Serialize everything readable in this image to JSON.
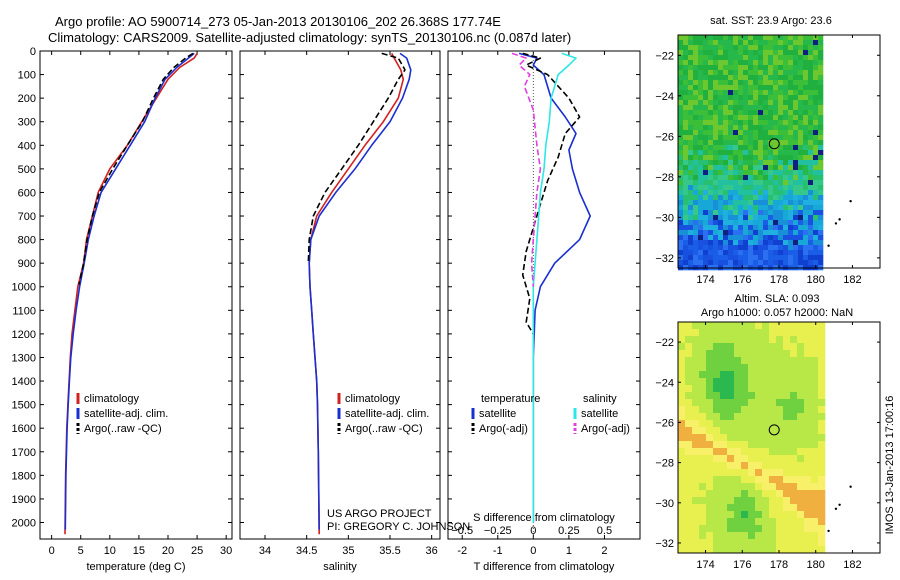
{
  "header": {
    "line1": "Argo profile: AO 5900714_273 05-Jan-2013 20130106_202 26.368S 177.74E",
    "line2": "Climatology: CARS2009. Satellite-adjusted climatology: synTS_20130106.nc (0.087d later)"
  },
  "credits": {
    "project": "US ARGO PROJECT",
    "pi": "PI: GREGORY C. JOHNSON"
  },
  "stamp": "IMOS 13-Jan-2013 17:00:16",
  "colors": {
    "climatology": "#d32020",
    "satellite": "#1a2fd0",
    "argo": "#000000",
    "sal_satellite": "#2ee6e6",
    "sal_argo": "#e040e0"
  },
  "chart_data": [
    {
      "type": "line",
      "id": "temperature",
      "xlabel": "temperature (deg C)",
      "ylabel": "",
      "xlim": [
        -2,
        31
      ],
      "ylim": [
        2070,
        0
      ],
      "xticks": [
        0,
        5,
        10,
        15,
        20,
        25,
        30
      ],
      "yticks": [
        0,
        100,
        200,
        300,
        400,
        500,
        600,
        700,
        800,
        900,
        1000,
        1100,
        1200,
        1300,
        1400,
        1500,
        1600,
        1700,
        1800,
        1900,
        2000
      ],
      "legend": {
        "placement": "lower-middle",
        "entries": [
          "climatology",
          "satellite-adj. clim.",
          "Argo(..raw -QC)"
        ]
      },
      "series": [
        {
          "name": "climatology",
          "color": "#d32020",
          "x": [
            25,
            24.5,
            22,
            20,
            18,
            15.5,
            13,
            10,
            8,
            7,
            6,
            5.5,
            4.5,
            4,
            3.5,
            3.2,
            3,
            2.8,
            2.6,
            2.5,
            2.4,
            2.3
          ],
          "y": [
            10,
            30,
            70,
            120,
            200,
            300,
            400,
            500,
            600,
            700,
            800,
            900,
            1000,
            1100,
            1200,
            1300,
            1400,
            1500,
            1600,
            1700,
            1800,
            2050
          ]
        },
        {
          "name": "satellite-adj. clim.",
          "color": "#1a2fd0",
          "x": [
            24.5,
            23.5,
            21.5,
            19.5,
            17.8,
            16,
            13.5,
            11,
            8.5,
            7.3,
            6.3,
            5.6,
            4.8,
            4.2,
            3.7,
            3.3,
            3.05,
            2.85,
            2.65,
            2.55,
            2.45,
            2.35
          ],
          "y": [
            10,
            30,
            70,
            120,
            200,
            300,
            400,
            500,
            600,
            700,
            800,
            900,
            1000,
            1100,
            1200,
            1300,
            1400,
            1500,
            1600,
            1700,
            1800,
            2030
          ]
        },
        {
          "name": "Argo(..raw -QC)",
          "color": "#000000",
          "dashed": true,
          "x": [
            24.3,
            23,
            21,
            19.2,
            17.5,
            15.6,
            13,
            10.5,
            8.2,
            7,
            6.1,
            5.5,
            4.7
          ],
          "y": [
            10,
            30,
            70,
            120,
            200,
            300,
            400,
            500,
            600,
            700,
            800,
            900,
            990
          ]
        }
      ]
    },
    {
      "type": "line",
      "id": "salinity",
      "xlabel": "salinity",
      "ylabel": "",
      "xlim": [
        33.7,
        36.1
      ],
      "ylim": [
        2070,
        0
      ],
      "xticks": [
        34,
        34.5,
        35,
        35.5,
        36
      ],
      "legend": {
        "placement": "lower-middle",
        "entries": [
          "climatology",
          "satellite-adj. clim.",
          "Argo(..raw -QC)"
        ]
      },
      "series": [
        {
          "name": "climatology",
          "color": "#d32020",
          "x": [
            35.52,
            35.55,
            35.63,
            35.66,
            35.6,
            35.42,
            35.2,
            35.0,
            34.8,
            34.62,
            34.55,
            34.53,
            34.54,
            34.56,
            34.58,
            34.6,
            34.62,
            34.63,
            34.64,
            34.65
          ],
          "y": [
            10,
            30,
            80,
            120,
            200,
            300,
            400,
            500,
            600,
            700,
            800,
            900,
            1000,
            1100,
            1200,
            1300,
            1400,
            1500,
            1700,
            2050
          ]
        },
        {
          "name": "satellite-adj. clim.",
          "color": "#1a2fd0",
          "x": [
            35.62,
            35.7,
            35.75,
            35.73,
            35.65,
            35.5,
            35.28,
            35.08,
            34.85,
            34.65,
            34.55,
            34.53,
            34.54,
            34.56,
            34.58,
            34.6,
            34.62,
            34.63,
            34.64,
            34.65
          ],
          "y": [
            10,
            30,
            80,
            120,
            200,
            300,
            400,
            500,
            600,
            700,
            800,
            900,
            1000,
            1100,
            1200,
            1300,
            1400,
            1500,
            1700,
            2030
          ]
        },
        {
          "name": "Argo(..raw -QC)",
          "color": "#000000",
          "dashed": true,
          "x": [
            35.4,
            35.6,
            35.68,
            35.6,
            35.48,
            35.3,
            35.12,
            34.92,
            34.72,
            34.58,
            34.53,
            34.52
          ],
          "y": [
            10,
            30,
            80,
            120,
            200,
            300,
            400,
            500,
            600,
            700,
            800,
            900
          ]
        }
      ]
    },
    {
      "type": "line",
      "id": "difference",
      "xlabel": "T difference from climatology",
      "x2label": "S difference from climatology",
      "ylabel": "",
      "xlim": [
        -2.4,
        3.0
      ],
      "ylim": [
        2070,
        0
      ],
      "xticks": [
        -2,
        -1,
        0,
        1,
        2
      ],
      "x2ticks": [
        -0.5,
        -0.25,
        0,
        0.25,
        0.5
      ],
      "legend": {
        "placement": "lower-middle",
        "headers": [
          "temperature",
          "salinity"
        ],
        "entries": [
          "satellite",
          "Argo(-adj)",
          "satellite",
          "Argo(-adj)"
        ]
      },
      "series": [
        {
          "name": "satellite",
          "color": "#1a2fd0",
          "x": [
            -0.4,
            0.1,
            0.0,
            0.3,
            0.5,
            0.9,
            1.2,
            1.0,
            1.1,
            1.3,
            1.6,
            1.3,
            0.6,
            0.2,
            0.05,
            0.0,
            0.0,
            0.0
          ],
          "y": [
            10,
            30,
            60,
            100,
            200,
            280,
            350,
            420,
            500,
            600,
            700,
            800,
            900,
            1000,
            1100,
            1300,
            1600,
            2000
          ]
        },
        {
          "name": "Argo(-adj)",
          "color": "#000000",
          "dashed": true,
          "x": [
            -0.3,
            0.2,
            -0.2,
            0.4,
            1.0,
            1.3,
            0.9,
            0.7,
            0.4,
            0.2,
            0.0,
            -0.2,
            -0.3,
            -0.1,
            -0.2,
            0.0
          ],
          "y": [
            10,
            30,
            60,
            100,
            200,
            280,
            350,
            450,
            550,
            650,
            750,
            850,
            950,
            1050,
            1150,
            1200
          ]
        },
        {
          "name": "salinity satellite",
          "color": "#2ee6e6",
          "x": [
            0.8,
            1.2,
            1.0,
            0.7,
            0.5,
            0.45,
            0.35,
            0.3,
            0.2,
            0.15,
            0.1,
            0.05,
            0.0,
            0.0,
            0.0
          ],
          "y": [
            10,
            30,
            60,
            100,
            200,
            300,
            400,
            500,
            600,
            700,
            800,
            900,
            1000,
            1300,
            2000
          ]
        },
        {
          "name": "salinity Argo(-adj)",
          "color": "#e040e0",
          "dashed": true,
          "x": [
            -0.6,
            -0.2,
            -0.4,
            -0.1,
            -0.25,
            0.0,
            0.1,
            0.2,
            0.1,
            0.05,
            0.0,
            -0.05,
            0.0
          ],
          "y": [
            10,
            30,
            60,
            100,
            150,
            250,
            400,
            500,
            600,
            700,
            800,
            900,
            1000
          ]
        }
      ]
    },
    {
      "type": "heatmap",
      "id": "sst-map",
      "title": "sat. SST: 23.9 Argo: 23.6",
      "xlim": [
        172.5,
        183.5
      ],
      "ylim": [
        -32.5,
        -21
      ],
      "xticks": [
        174,
        176,
        178,
        180,
        182
      ],
      "yticks": [
        -22,
        -24,
        -26,
        -28,
        -30,
        -32
      ],
      "marker": {
        "lon": 177.74,
        "lat": -26.368
      }
    },
    {
      "type": "heatmap",
      "id": "sla-map",
      "title": "Altim. SLA: 0.093",
      "subtitle": "Argo h1000: 0.057 h2000: NaN",
      "xlim": [
        172.5,
        183.5
      ],
      "ylim": [
        -32.5,
        -21
      ],
      "xticks": [
        174,
        176,
        178,
        180,
        182
      ],
      "yticks": [
        -22,
        -24,
        -26,
        -28,
        -30,
        -32
      ],
      "marker": {
        "lon": 177.74,
        "lat": -26.368
      }
    }
  ]
}
